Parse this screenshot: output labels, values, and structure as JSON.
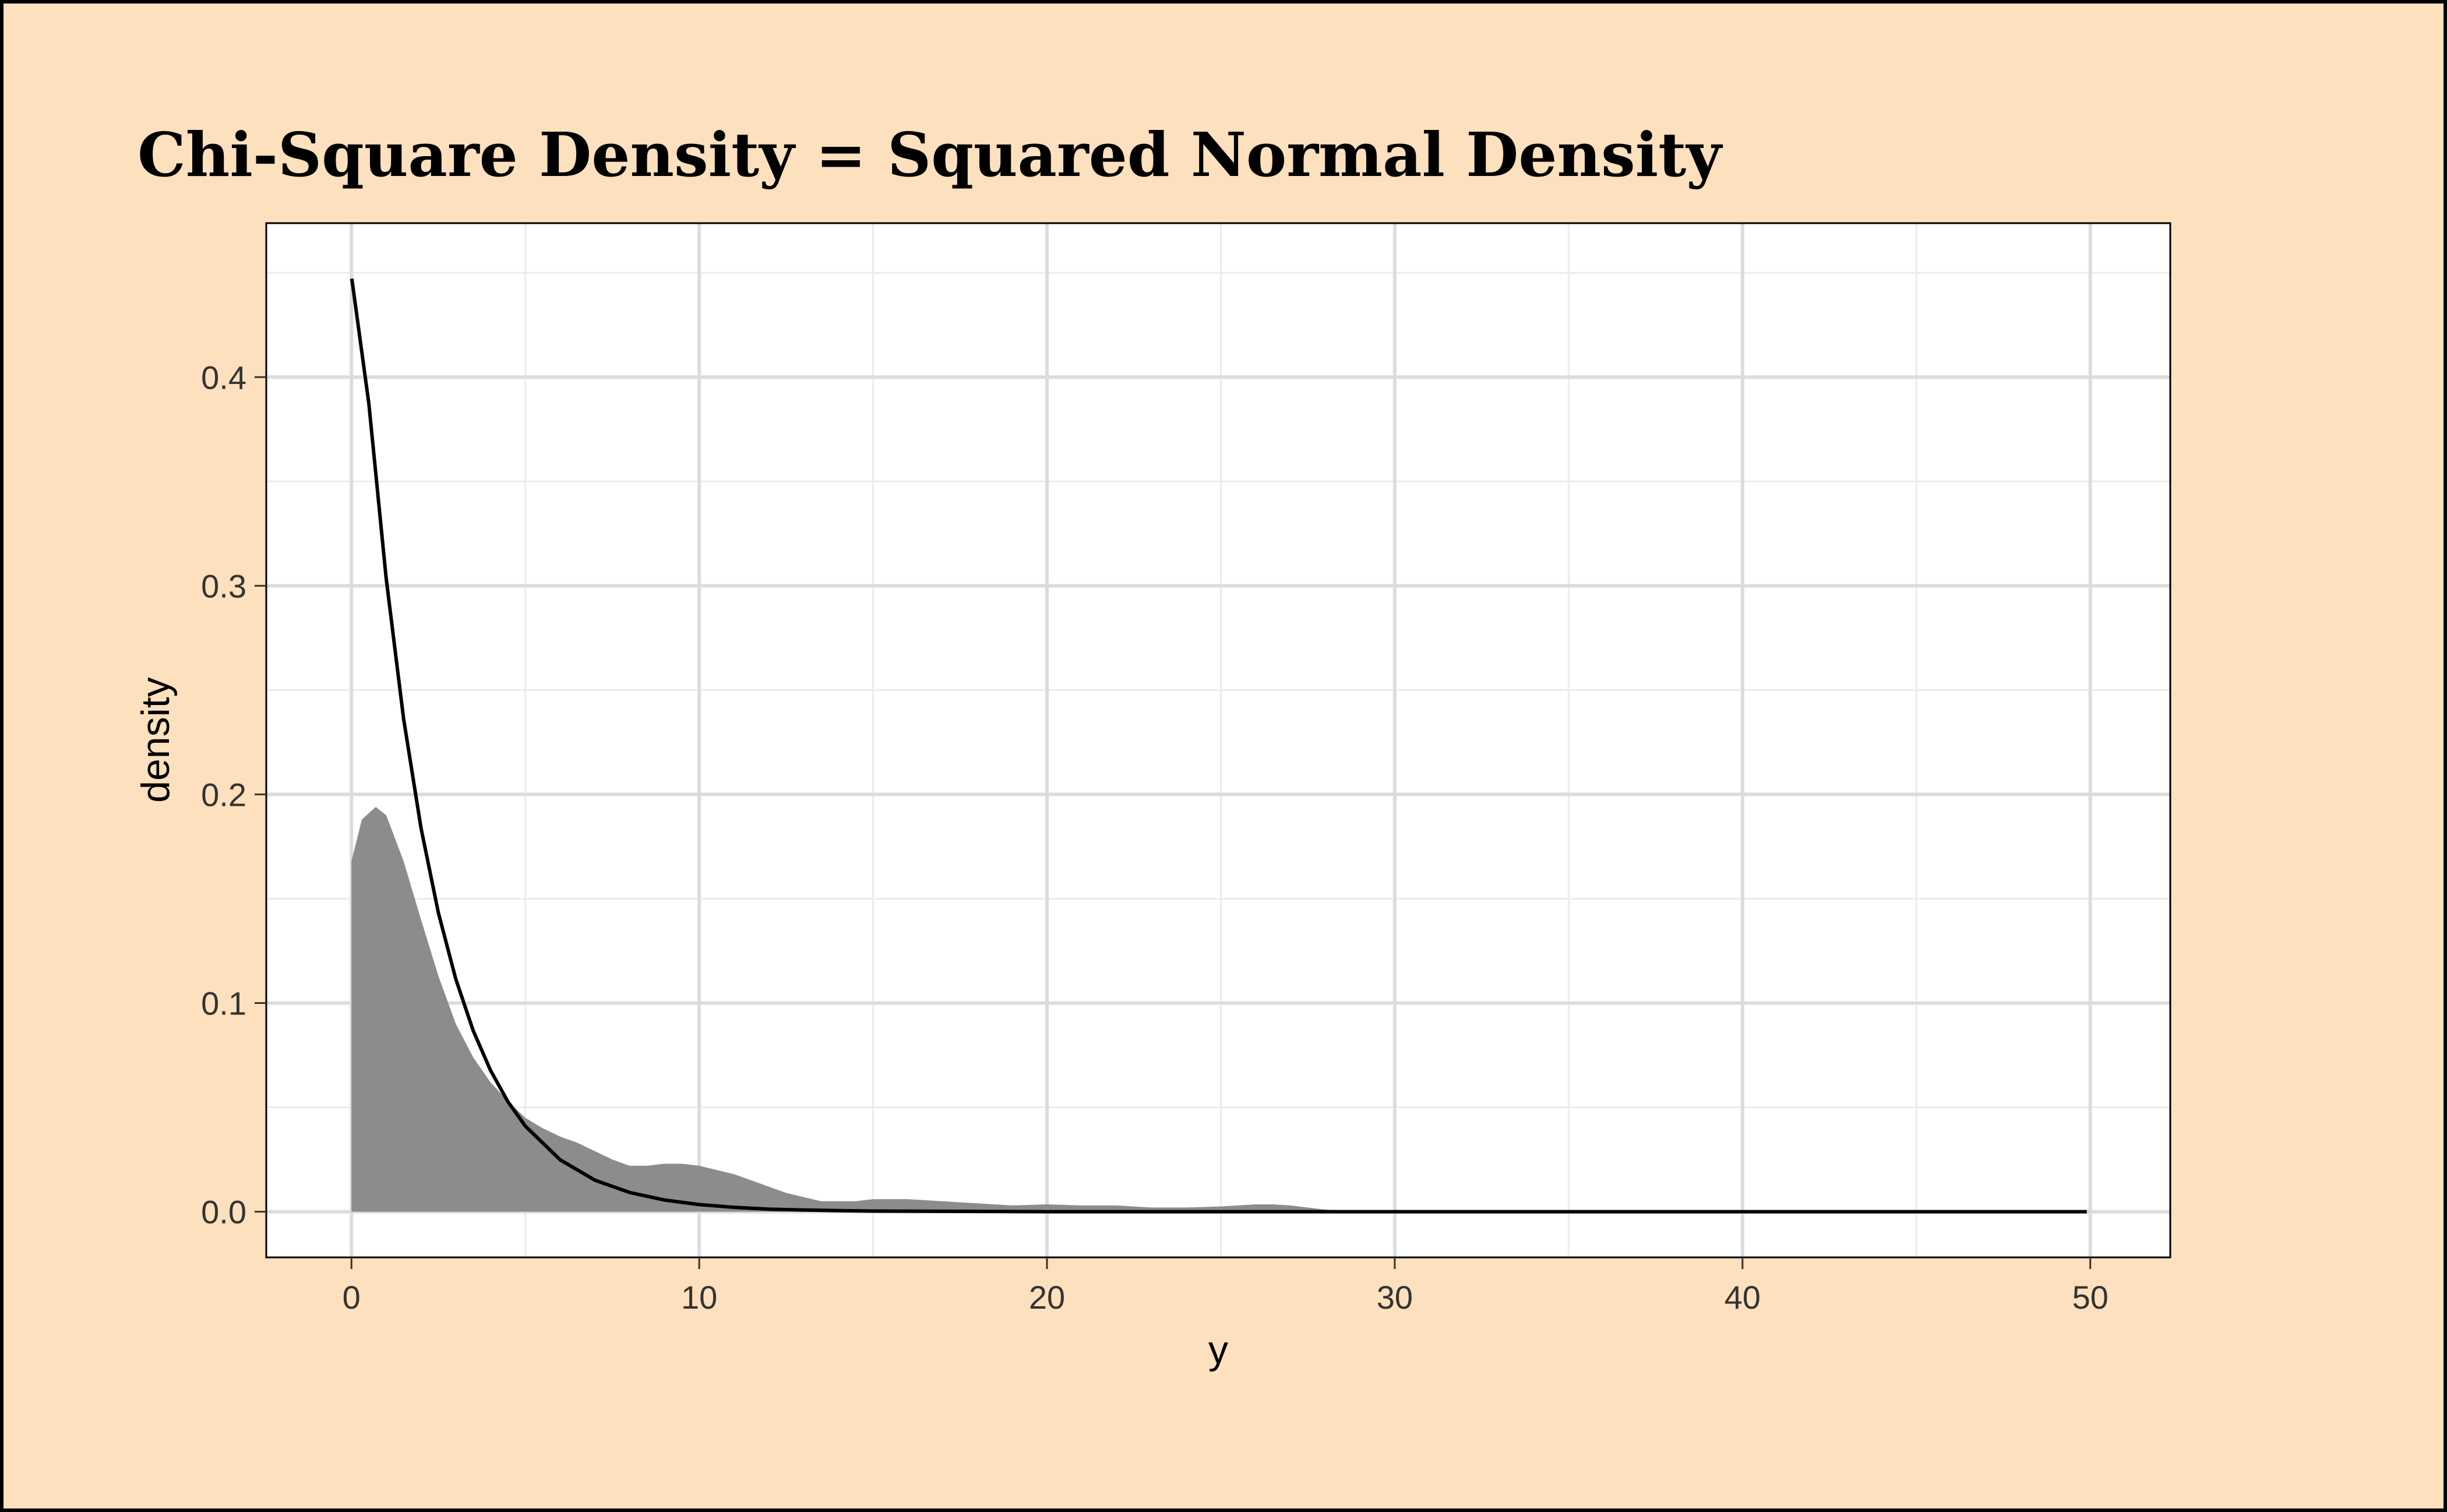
{
  "chart_data": {
    "type": "area",
    "title": "Chi-Square Density = Squared Normal Density",
    "xlabel": "y",
    "ylabel": "density",
    "xlim": [
      -2.45,
      52.3
    ],
    "ylim": [
      -0.0219,
      0.4738
    ],
    "x_ticks": [
      0,
      10,
      20,
      30,
      40,
      50
    ],
    "x_tick_labels": [
      "0",
      "10",
      "20",
      "30",
      "40",
      "50"
    ],
    "y_ticks": [
      0.0,
      0.1,
      0.2,
      0.3,
      0.4
    ],
    "y_tick_labels": [
      "0.0",
      "0.1",
      "0.2",
      "0.3",
      "0.4"
    ],
    "x_minor": [
      5,
      15,
      25,
      35,
      45
    ],
    "y_minor": [
      0.05,
      0.15,
      0.25,
      0.35,
      0.45
    ],
    "grid": true,
    "legend": "none",
    "colors": {
      "background": "#fde0bd",
      "panel": "#ffffff",
      "grid_major": "#dcdcdc",
      "grid_minor": "#ececec",
      "density_fill": "#8c8c8c",
      "curve": "#000000",
      "border": "#000000",
      "text": "#333333"
    },
    "series": [
      {
        "kind": "density-area",
        "x": [
          0,
          0.3,
          0.7,
          1.0,
          1.5,
          2.0,
          2.5,
          3.0,
          3.5,
          4.0,
          4.5,
          5.0,
          5.5,
          6.0,
          6.5,
          7.0,
          7.5,
          8.0,
          8.5,
          9.0,
          9.5,
          10.0,
          10.5,
          11.0,
          11.5,
          12.0,
          12.5,
          13.0,
          13.5,
          14.0,
          14.5,
          15.0,
          15.5,
          16.0,
          17.0,
          18.0,
          19.0,
          20.0,
          21.0,
          22.0,
          23.0,
          24.0,
          25.0,
          26.0,
          26.5,
          27.0,
          28.0,
          29.0
        ],
        "y": [
          0.168,
          0.188,
          0.194,
          0.19,
          0.168,
          0.14,
          0.113,
          0.09,
          0.074,
          0.062,
          0.053,
          0.045,
          0.04,
          0.036,
          0.033,
          0.029,
          0.025,
          0.022,
          0.022,
          0.023,
          0.023,
          0.022,
          0.02,
          0.018,
          0.015,
          0.012,
          0.009,
          0.007,
          0.005,
          0.005,
          0.005,
          0.006,
          0.006,
          0.006,
          0.005,
          0.004,
          0.003,
          0.0035,
          0.003,
          0.003,
          0.002,
          0.002,
          0.0025,
          0.0035,
          0.0035,
          0.003,
          0.001,
          0.0
        ]
      },
      {
        "kind": "line",
        "x": [
          0.01,
          0.5,
          1,
          1.5,
          2,
          2.5,
          3,
          3.5,
          4,
          4.5,
          5,
          6,
          7,
          8,
          9,
          10,
          11,
          12,
          13,
          14,
          15,
          20,
          25,
          30,
          35,
          40,
          45,
          49.9
        ],
        "y": [
          0.4472,
          0.3873,
          0.3033,
          0.2362,
          0.1839,
          0.1432,
          0.1115,
          0.0868,
          0.0677,
          0.0527,
          0.041,
          0.0249,
          0.0151,
          0.0092,
          0.0056,
          0.0034,
          0.0021,
          0.0012,
          0.0008,
          0.0005,
          0.0003,
          0.0,
          0.0,
          0.0,
          0.0,
          0.0,
          0.0,
          0.0
        ]
      }
    ]
  }
}
